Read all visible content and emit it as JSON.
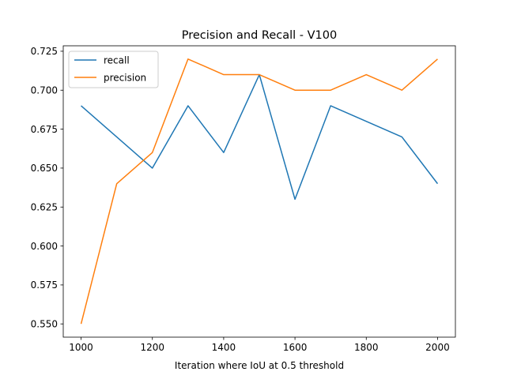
{
  "chart_data": {
    "type": "line",
    "title": "Precision and Recall - V100",
    "xlabel": "Iteration where IoU at 0.5 threshold",
    "ylabel": "",
    "x": [
      1000,
      1100,
      1200,
      1300,
      1400,
      1500,
      1600,
      1700,
      1800,
      1900,
      2000
    ],
    "series": [
      {
        "name": "recall",
        "color": "#1f77b4",
        "values": [
          0.69,
          0.67,
          0.65,
          0.69,
          0.66,
          0.71,
          0.63,
          0.69,
          0.68,
          0.67,
          0.64
        ]
      },
      {
        "name": "precision",
        "color": "#ff7f0e",
        "values": [
          0.55,
          0.64,
          0.66,
          0.72,
          0.71,
          0.71,
          0.7,
          0.7,
          0.71,
          0.7,
          0.72
        ]
      }
    ],
    "xlim": [
      950,
      2050
    ],
    "ylim": [
      0.5415,
      0.7285
    ],
    "xticks": [
      1000,
      1200,
      1400,
      1600,
      1800,
      2000
    ],
    "xtick_labels": [
      "1000",
      "1200",
      "1400",
      "1600",
      "1800",
      "2000"
    ],
    "yticks": [
      0.55,
      0.575,
      0.6,
      0.625,
      0.65,
      0.675,
      0.7,
      0.725
    ],
    "ytick_labels": [
      "0.550",
      "0.575",
      "0.600",
      "0.625",
      "0.650",
      "0.675",
      "0.700",
      "0.725"
    ],
    "grid": false,
    "legend_position": "top-left"
  }
}
